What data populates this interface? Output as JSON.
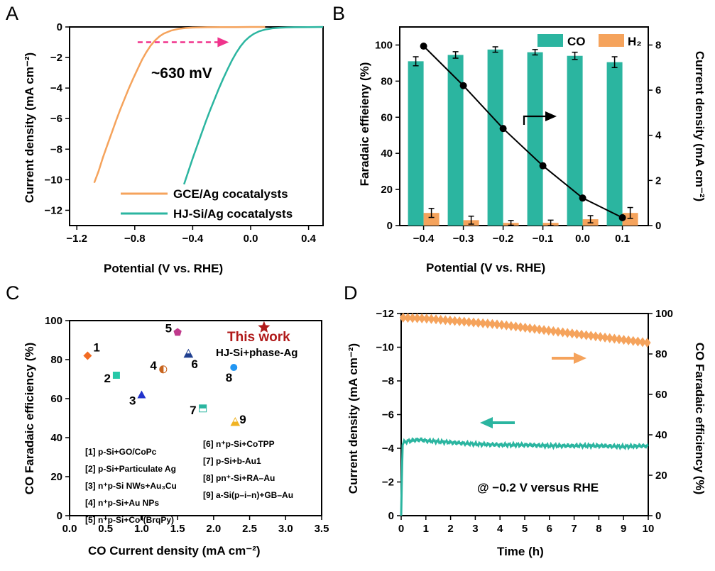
{
  "panels": {
    "A": {
      "letter": "A"
    },
    "B": {
      "letter": "B"
    },
    "C": {
      "letter": "C"
    },
    "D": {
      "letter": "D"
    }
  },
  "chart_data": [
    {
      "panel": "A",
      "type": "line",
      "title": "",
      "xlabel": "Potential (V vs. RHE)",
      "ylabel": "Current density (mA cm⁻²)",
      "xlim": [
        -1.25,
        0.5
      ],
      "ylim": [
        -13,
        0
      ],
      "xticks": [
        -1.2,
        -0.8,
        -0.4,
        0.0,
        0.4
      ],
      "yticks": [
        0,
        -2,
        -4,
        -6,
        -8,
        -10,
        -12
      ],
      "series": [
        {
          "name": "GCE/Ag cocatalysts",
          "color": "#f5a35c",
          "x": [
            -1.08,
            -1.05,
            -1.02,
            -0.99,
            -0.96,
            -0.93,
            -0.9,
            -0.87,
            -0.84,
            -0.81,
            -0.78,
            -0.75,
            -0.72,
            -0.69,
            -0.66,
            -0.63,
            -0.6,
            -0.55,
            -0.5,
            -0.45,
            -0.4,
            -0.3,
            -0.2,
            -0.1,
            0.0,
            0.1
          ],
          "y": [
            -10.2,
            -9.45,
            -8.55,
            -7.75,
            -6.95,
            -6.15,
            -5.4,
            -4.7,
            -4.0,
            -3.35,
            -2.75,
            -2.15,
            -1.65,
            -1.22,
            -0.88,
            -0.62,
            -0.43,
            -0.24,
            -0.13,
            -0.07,
            -0.04,
            -0.02,
            -0.01,
            -0.01,
            0.0,
            0.0
          ]
        },
        {
          "name": "HJ-Si/Ag cocatalysts",
          "color": "#2bb5a0",
          "x": [
            -0.46,
            -0.43,
            -0.4,
            -0.37,
            -0.34,
            -0.31,
            -0.28,
            -0.25,
            -0.22,
            -0.19,
            -0.16,
            -0.13,
            -0.1,
            -0.07,
            -0.04,
            -0.01,
            0.02,
            0.06,
            0.1,
            0.15,
            0.2,
            0.25,
            0.3,
            0.4,
            0.5
          ],
          "y": [
            -10.3,
            -9.45,
            -8.6,
            -7.8,
            -7.0,
            -6.2,
            -5.45,
            -4.75,
            -4.05,
            -3.4,
            -2.78,
            -2.2,
            -1.7,
            -1.27,
            -0.92,
            -0.66,
            -0.46,
            -0.28,
            -0.17,
            -0.09,
            -0.05,
            -0.03,
            -0.02,
            -0.01,
            0.0
          ]
        }
      ],
      "annotations": [
        {
          "text": "~630 mV",
          "type": "arrow",
          "from_x": -0.78,
          "to_x": -0.15,
          "y": -1.0,
          "color": "#f0338c"
        }
      ]
    },
    {
      "panel": "B",
      "type": "bar",
      "title": "",
      "xlabel": "Potential (V vs. RHE)",
      "ylabel": "Faradaic effieieny (%)",
      "ylabel_right": "Current density (mA cm⁻²)",
      "categories": [
        "−0.4",
        "−0.3",
        "−0.2",
        "−0.1",
        "0.0",
        "0.1"
      ],
      "ylim": [
        0,
        110
      ],
      "yticks": [
        0,
        20,
        40,
        60,
        80,
        100
      ],
      "ylim_right": [
        0,
        8.8
      ],
      "yticks_right": [
        0,
        2,
        4,
        6,
        8
      ],
      "series": [
        {
          "name": "CO",
          "color": "#2bb5a0",
          "values": [
            91,
            94.5,
            97.5,
            96,
            94,
            90.5
          ],
          "errors": [
            2.5,
            1.8,
            1.5,
            1.5,
            2.0,
            3.0
          ]
        },
        {
          "name": "H₂",
          "color": "#f5a35c",
          "values": [
            7,
            3,
            1.5,
            1.5,
            3.5,
            7
          ],
          "errors": [
            2.5,
            2.2,
            1.3,
            1.5,
            2.0,
            3.0
          ]
        }
      ],
      "line_series": {
        "name": "Current density",
        "axis": "right",
        "color": "#000000",
        "values": [
          7.95,
          6.2,
          4.3,
          2.65,
          1.22,
          0.35
        ]
      },
      "annotations": [
        {
          "type": "arrow",
          "direction": "right",
          "meaning": "line uses right axis"
        }
      ]
    },
    {
      "panel": "C",
      "type": "scatter",
      "title": "",
      "xlabel": "CO Current density (mA cm⁻²)",
      "ylabel": "CO Faradaic efficiency (%)",
      "xlim": [
        0,
        3.5
      ],
      "ylim": [
        0,
        100
      ],
      "xticks": [
        0.0,
        0.5,
        1.0,
        1.5,
        2.0,
        2.5,
        3.0,
        3.5
      ],
      "yticks": [
        0,
        20,
        40,
        60,
        80,
        100
      ],
      "points": [
        {
          "label": "1",
          "x": 0.25,
          "y": 82,
          "marker": "diamond",
          "color": "#f26b22"
        },
        {
          "label": "2",
          "x": 0.65,
          "y": 72,
          "marker": "square",
          "color": "#27c8a8"
        },
        {
          "label": "3",
          "x": 1.0,
          "y": 62,
          "marker": "triangle",
          "color": "#2233cc"
        },
        {
          "label": "4",
          "x": 1.3,
          "y": 75,
          "marker": "halfcircle",
          "color": "#c8641e"
        },
        {
          "label": "5",
          "x": 1.5,
          "y": 94,
          "marker": "pentagon",
          "color": "#c03a8c"
        },
        {
          "label": "6",
          "x": 1.65,
          "y": 83,
          "marker": "halftriangle",
          "color": "#1f3f8f"
        },
        {
          "label": "7",
          "x": 1.85,
          "y": 55,
          "marker": "halfsquare",
          "color": "#2bb5a0"
        },
        {
          "label": "8",
          "x": 2.28,
          "y": 76,
          "marker": "circle",
          "color": "#2196f3"
        },
        {
          "label": "9",
          "x": 2.3,
          "y": 48,
          "marker": "halftriangle",
          "color": "#f0b323"
        },
        {
          "label": "This work",
          "x": 2.7,
          "y": 96.5,
          "marker": "star",
          "color": "#b01a1a"
        }
      ],
      "this_work_title": "This work",
      "this_work_sub": "HJ-Si+phase-Ag",
      "references_left": [
        "[1] p-Si+GO/CoPc",
        "[2] p-Si+Particulate Ag",
        "[3] n⁺p-Si NWs+Au₃Cu",
        "[4] n⁺p-Si+Au NPs",
        "[5] n⁺p-Si+Coᴵᴵ(BrqPy)"
      ],
      "references_right": [
        "[6] n⁺p-Si+CoTPP",
        "[7] p-Si+b-Au1",
        "[8] pn⁺-Si+RA–Au",
        "[9] a-Si(p–i–n)+GB–Au"
      ]
    },
    {
      "panel": "D",
      "type": "line",
      "title": "",
      "xlabel": "Time (h)",
      "ylabel": "Current density (mA cm⁻²)",
      "ylabel_right": "CO Faradaic efficiency (%)",
      "xlim": [
        0,
        10
      ],
      "ylim": [
        0,
        -12
      ],
      "xticks": [
        0,
        1,
        2,
        3,
        4,
        5,
        6,
        7,
        8,
        9,
        10
      ],
      "yticks": [
        0,
        -2,
        -4,
        -6,
        -8,
        -10,
        -12
      ],
      "ylim_right": [
        0,
        100
      ],
      "yticks_right": [
        0,
        20,
        40,
        60,
        80,
        100
      ],
      "series": [
        {
          "name": "Current density",
          "axis": "left",
          "color": "#2bb5a0",
          "x": [
            0.0,
            0.03,
            0.06,
            0.1,
            0.2,
            0.4,
            0.6,
            0.8,
            1.0,
            1.5,
            2.0,
            3.0,
            4.0,
            5.0,
            6.0,
            7.0,
            8.0,
            9.0,
            10.0
          ],
          "y": [
            0,
            -2.5,
            -4.2,
            -4.35,
            -4.4,
            -4.45,
            -4.5,
            -4.5,
            -4.45,
            -4.4,
            -4.35,
            -4.25,
            -4.2,
            -4.2,
            -4.15,
            -4.15,
            -4.15,
            -4.1,
            -4.15
          ]
        },
        {
          "name": "CO Faradaic efficiency",
          "axis": "right",
          "color": "#f5a35c",
          "marker": "diamond",
          "x": [
            0.0,
            1.0,
            2.0,
            3.0,
            4.0,
            5.0,
            6.0,
            7.0,
            8.0,
            9.0,
            10.0
          ],
          "y": [
            98,
            97.5,
            96.5,
            95.5,
            94.5,
            93,
            91.5,
            90,
            88.5,
            87,
            85.5
          ]
        }
      ],
      "annotations": [
        {
          "text": "@ −0.2 V versus RHE"
        }
      ]
    }
  ]
}
